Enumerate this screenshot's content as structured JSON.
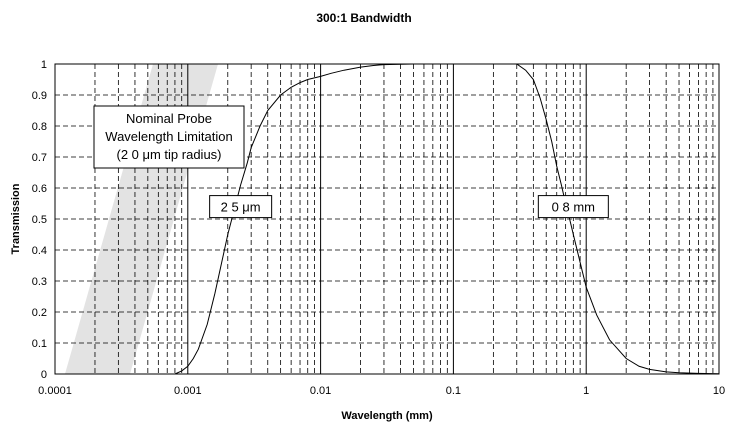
{
  "chart_data": {
    "type": "line",
    "title": "300:1 Bandwidth",
    "xlabel": "Wavelength (mm)",
    "ylabel": "Transmission",
    "x_scale": "log",
    "xlim": [
      0.0001,
      10
    ],
    "ylim": [
      0,
      1
    ],
    "x_ticks": [
      "0.0001",
      "0.001",
      "0.01",
      "0.1",
      "1",
      "10"
    ],
    "y_ticks": [
      "0",
      "0.1",
      "0.2",
      "0.3",
      "0.4",
      "0.5",
      "0.6",
      "0.7",
      "0.8",
      "0.9",
      "1"
    ],
    "grid": {
      "major": "solid",
      "minor": "dashed"
    },
    "legend": "none",
    "series": [
      {
        "x": [
          0.0008,
          0.0009,
          0.001,
          0.0011,
          0.0012,
          0.0014,
          0.0016,
          0.0018,
          0.002,
          0.0023,
          0.0025,
          0.0028,
          0.003,
          0.0035,
          0.004,
          0.005,
          0.006,
          0.007,
          0.008,
          0.01,
          0.012,
          0.015,
          0.02,
          0.025,
          0.03,
          0.05,
          0.3,
          0.35,
          0.4,
          0.45,
          0.5,
          0.55,
          0.6,
          0.65,
          0.7,
          0.75,
          0.8,
          0.9,
          1.0,
          1.2,
          1.5,
          2.0,
          2.5,
          3.0,
          4.0,
          5.0,
          7.0,
          10.0
        ],
        "values": [
          0.0,
          0.01,
          0.025,
          0.05,
          0.08,
          0.16,
          0.26,
          0.36,
          0.45,
          0.55,
          0.61,
          0.68,
          0.73,
          0.8,
          0.85,
          0.9,
          0.925,
          0.94,
          0.95,
          0.96,
          0.97,
          0.98,
          0.99,
          0.995,
          0.998,
          1.0,
          1.0,
          0.98,
          0.95,
          0.89,
          0.82,
          0.75,
          0.67,
          0.61,
          0.55,
          0.5,
          0.45,
          0.36,
          0.28,
          0.19,
          0.11,
          0.05,
          0.025,
          0.015,
          0.007,
          0.004,
          0.002,
          0.001
        ]
      }
    ],
    "band": {
      "label_lines": [
        "Nominal Probe",
        "Wavelength Limitation",
        "(2 0 μm tip radius)"
      ],
      "color": "#e3e3e3"
    },
    "annotations": [
      {
        "text": "2 5 μm",
        "x": 0.0025,
        "y": 0.54
      },
      {
        "text": "0 8 mm",
        "x": 0.8,
        "y": 0.54
      }
    ]
  }
}
